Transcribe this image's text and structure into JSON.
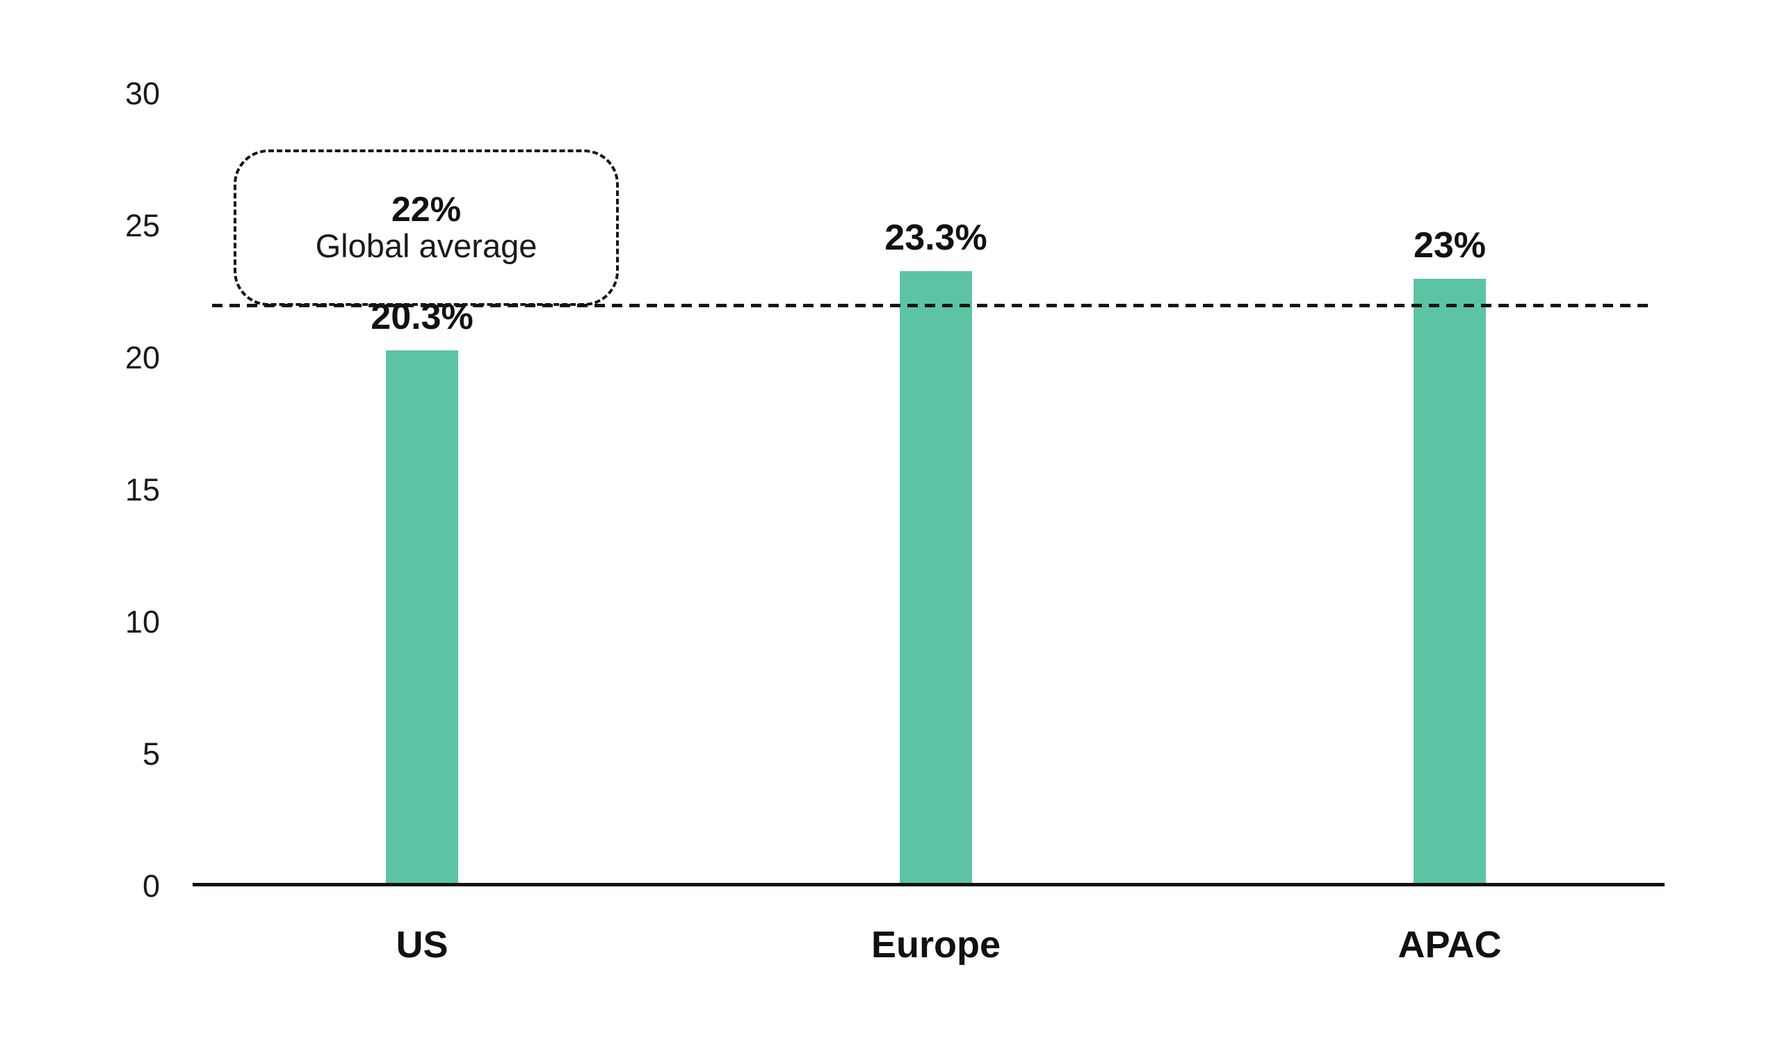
{
  "chart_data": {
    "type": "bar",
    "title": "",
    "xlabel": "",
    "ylabel": "",
    "categories": [
      "US",
      "Europe",
      "APAC"
    ],
    "values": [
      20.3,
      23.3,
      23
    ],
    "value_labels": [
      "20.3%",
      "23.3%",
      "23%"
    ],
    "ylim": [
      0,
      30
    ],
    "yticks": [
      0,
      5,
      10,
      15,
      20,
      25,
      30
    ],
    "grid": false,
    "legend": "none",
    "bar_color": "#5CC4A5",
    "axis_color": "#111111",
    "text_color": "#1a1a1a",
    "reference_line": {
      "value": 22,
      "label_value": "22%",
      "label_text": "Global average",
      "style": "dashed"
    }
  }
}
